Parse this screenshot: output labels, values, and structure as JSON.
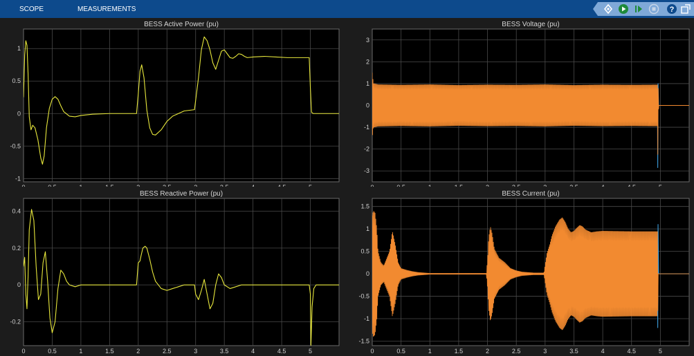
{
  "toolbar": {
    "tabs": [
      {
        "label": "SCOPE"
      },
      {
        "label": "MEASUREMENTS"
      }
    ],
    "icons": [
      "highlight-signal-icon",
      "run-icon",
      "step-forward-icon",
      "stop-icon",
      "help-icon",
      "undock-icon"
    ]
  },
  "colors": {
    "signal_yellow": "#e8e83c",
    "signal_orange": "#f28a30",
    "signal_blue": "#3c9bd8",
    "toolbar": "#0d4a8c",
    "axes_bg": "#000000"
  },
  "chart_data": [
    {
      "type": "line",
      "title": "BESS  Active Power (pu)",
      "xlim": [
        0,
        5.5
      ],
      "ylim": [
        -1.05,
        1.3
      ],
      "xticks": [
        "0",
        "0.5",
        "1",
        "1.5",
        "2",
        "2.5",
        "3",
        "3.5",
        "4",
        "4.5",
        "5"
      ],
      "yticks": [
        "-1",
        "-0.5",
        "0",
        "0.5",
        "1"
      ],
      "grid": true,
      "series": [
        {
          "color": "#e8e83c",
          "x": [
            0,
            0.02,
            0.04,
            0.06,
            0.08,
            0.1,
            0.13,
            0.16,
            0.2,
            0.25,
            0.3,
            0.33,
            0.36,
            0.4,
            0.45,
            0.5,
            0.55,
            0.6,
            0.65,
            0.7,
            0.8,
            0.9,
            1.0,
            1.2,
            1.5,
            1.8,
            1.97,
            2.0,
            2.03,
            2.06,
            2.1,
            2.15,
            2.2,
            2.25,
            2.3,
            2.4,
            2.5,
            2.6,
            2.8,
            2.98,
            3.0,
            3.05,
            3.1,
            3.15,
            3.2,
            3.25,
            3.3,
            3.35,
            3.4,
            3.45,
            3.5,
            3.55,
            3.6,
            3.65,
            3.7,
            3.75,
            3.8,
            3.85,
            3.9,
            4.0,
            4.2,
            4.4,
            4.6,
            4.9,
            4.98,
            5.0,
            5.02,
            5.05,
            5.1,
            5.2,
            5.5
          ],
          "y": [
            0.25,
            0.9,
            1.12,
            1.05,
            0.6,
            -0.05,
            -0.25,
            -0.18,
            -0.22,
            -0.4,
            -0.68,
            -0.78,
            -0.65,
            -0.22,
            0.08,
            0.22,
            0.26,
            0.22,
            0.12,
            0.03,
            -0.04,
            -0.05,
            -0.03,
            -0.01,
            0,
            0,
            0,
            0.3,
            0.65,
            0.75,
            0.55,
            0.05,
            -0.22,
            -0.32,
            -0.33,
            -0.25,
            -0.12,
            -0.04,
            0.04,
            0.06,
            0.2,
            0.55,
            0.98,
            1.18,
            1.12,
            0.98,
            0.78,
            0.68,
            0.82,
            0.96,
            0.98,
            0.92,
            0.86,
            0.85,
            0.88,
            0.92,
            0.91,
            0.88,
            0.86,
            0.87,
            0.88,
            0.87,
            0.86,
            0.86,
            0.86,
            0.4,
            0.02,
            0,
            0,
            0,
            0
          ]
        }
      ]
    },
    {
      "type": "line",
      "title": "BESS Voltage (pu)",
      "xlim": [
        0,
        5.5
      ],
      "ylim": [
        -3.5,
        3.5
      ],
      "xticks": [
        "0",
        "0.5",
        "1",
        "1.5",
        "2",
        "2.5",
        "3",
        "3.5",
        "4",
        "4.5",
        "5"
      ],
      "yticks": [
        "-3",
        "-2",
        "-1",
        "0",
        "1",
        "2",
        "3"
      ],
      "grid": true,
      "series": [
        {
          "color": "#3c9bd8",
          "x": [
            0,
            4.95,
            4.955,
            4.96,
            4.97,
            5.0,
            5.5
          ],
          "y": [
            0,
            0,
            -2.85,
            1.0,
            0,
            0,
            0
          ]
        },
        {
          "color": "#f28a30",
          "x": [
            0,
            0.02,
            0.1,
            0.5,
            1,
            1.5,
            2,
            2.5,
            3,
            3.5,
            4,
            4.5,
            4.95,
            4.955,
            4.96,
            4.97,
            5.0,
            5.5
          ],
          "amp": [
            1.5,
            1.0,
            0.95,
            0.93,
            0.95,
            0.92,
            0.94,
            0.93,
            0.95,
            0.92,
            0.94,
            0.93,
            0.94,
            2.6,
            1.0,
            0,
            0,
            0
          ]
        }
      ]
    },
    {
      "type": "line",
      "title": "BESS  Reactive Power (pu)",
      "xlim": [
        0,
        5.5
      ],
      "ylim": [
        -0.33,
        0.47
      ],
      "xticks": [
        "0",
        "0.5",
        "1",
        "1.5",
        "2",
        "2.5",
        "3",
        "3.5",
        "4",
        "4.5",
        "5"
      ],
      "yticks": [
        "-0.2",
        "0",
        "0.2",
        "0.4"
      ],
      "grid": true,
      "series": [
        {
          "color": "#e8e83c",
          "x": [
            0,
            0.02,
            0.04,
            0.06,
            0.08,
            0.1,
            0.14,
            0.18,
            0.22,
            0.26,
            0.3,
            0.34,
            0.38,
            0.42,
            0.46,
            0.5,
            0.55,
            0.6,
            0.65,
            0.7,
            0.75,
            0.8,
            0.9,
            1.0,
            1.2,
            1.5,
            1.8,
            1.97,
            2.0,
            2.03,
            2.05,
            2.08,
            2.12,
            2.15,
            2.2,
            2.25,
            2.3,
            2.4,
            2.5,
            2.6,
            2.7,
            2.8,
            2.9,
            2.98,
            3.0,
            3.05,
            3.1,
            3.15,
            3.2,
            3.25,
            3.3,
            3.35,
            3.4,
            3.45,
            3.5,
            3.6,
            3.7,
            3.8,
            4.0,
            4.5,
            4.9,
            4.98,
            5.0,
            5.01,
            5.03,
            5.06,
            5.1,
            5.2,
            5.5
          ],
          "y": [
            0.1,
            0.15,
            -0.05,
            -0.13,
            0.05,
            0.3,
            0.41,
            0.35,
            0.1,
            -0.08,
            -0.05,
            0.12,
            0.18,
            0.02,
            -0.18,
            -0.26,
            -0.2,
            -0.02,
            0.08,
            0.06,
            0.02,
            0,
            -0.01,
            0,
            0,
            0,
            0,
            0,
            0.12,
            0.13,
            0.16,
            0.2,
            0.21,
            0.2,
            0.14,
            0.07,
            0.02,
            -0.02,
            -0.03,
            -0.02,
            -0.01,
            0,
            0,
            0,
            -0.05,
            -0.08,
            -0.03,
            0.03,
            -0.05,
            -0.13,
            -0.1,
            0,
            0.06,
            0.04,
            0,
            -0.02,
            -0.01,
            0,
            0,
            0,
            0,
            0,
            -0.05,
            -0.33,
            -0.12,
            -0.02,
            0,
            0,
            0
          ]
        }
      ]
    },
    {
      "type": "line",
      "title": "BESS Current (pu)",
      "xlim": [
        0,
        5.5
      ],
      "ylim": [
        -1.6,
        1.68
      ],
      "xticks": [
        "0",
        "0.5",
        "1",
        "1.5",
        "2",
        "2.5",
        "3",
        "3.5",
        "4",
        "4.5",
        "5"
      ],
      "yticks": [
        "-1.5",
        "-1",
        "-0.5",
        "0",
        "0.5",
        "1",
        "1.5"
      ],
      "grid": true,
      "series": [
        {
          "color": "#3c9bd8",
          "x": [
            0,
            4.95,
            4.955,
            4.96,
            4.97,
            5.0,
            5.5
          ],
          "y": [
            0,
            0,
            -1.2,
            1.1,
            0,
            0,
            0
          ]
        },
        {
          "color": "#f28a30",
          "x": [
            0,
            0.02,
            0.05,
            0.08,
            0.1,
            0.15,
            0.2,
            0.3,
            0.35,
            0.4,
            0.45,
            0.5,
            0.6,
            0.7,
            0.8,
            0.9,
            1.0,
            1.2,
            1.5,
            1.8,
            1.98,
            2.0,
            2.02,
            2.05,
            2.08,
            2.12,
            2.2,
            2.3,
            2.4,
            2.5,
            2.6,
            2.8,
            2.98,
            3.0,
            3.03,
            3.08,
            3.12,
            3.18,
            3.25,
            3.3,
            3.35,
            3.4,
            3.45,
            3.5,
            3.55,
            3.6,
            3.65,
            3.7,
            3.8,
            3.9,
            4.0,
            4.5,
            4.95,
            4.955,
            4.96,
            5.0,
            5.5
          ],
          "amp": [
            1.3,
            1.4,
            1.35,
            1.0,
            0.5,
            0.25,
            0.18,
            0.5,
            0.95,
            0.65,
            0.25,
            0.12,
            0.08,
            0.05,
            0.03,
            0.02,
            0.01,
            0.01,
            0.01,
            0.01,
            0.01,
            0.3,
            0.8,
            1.05,
            0.9,
            0.55,
            0.35,
            0.25,
            0.12,
            0.07,
            0.04,
            0.02,
            0.02,
            0.2,
            0.45,
            0.65,
            0.85,
            1.05,
            1.2,
            1.25,
            1.15,
            1.0,
            0.92,
            0.95,
            1.02,
            1.08,
            1.05,
            0.98,
            0.92,
            0.94,
            0.95,
            0.94,
            0.94,
            1.05,
            0.0,
            0,
            0
          ]
        }
      ]
    }
  ]
}
